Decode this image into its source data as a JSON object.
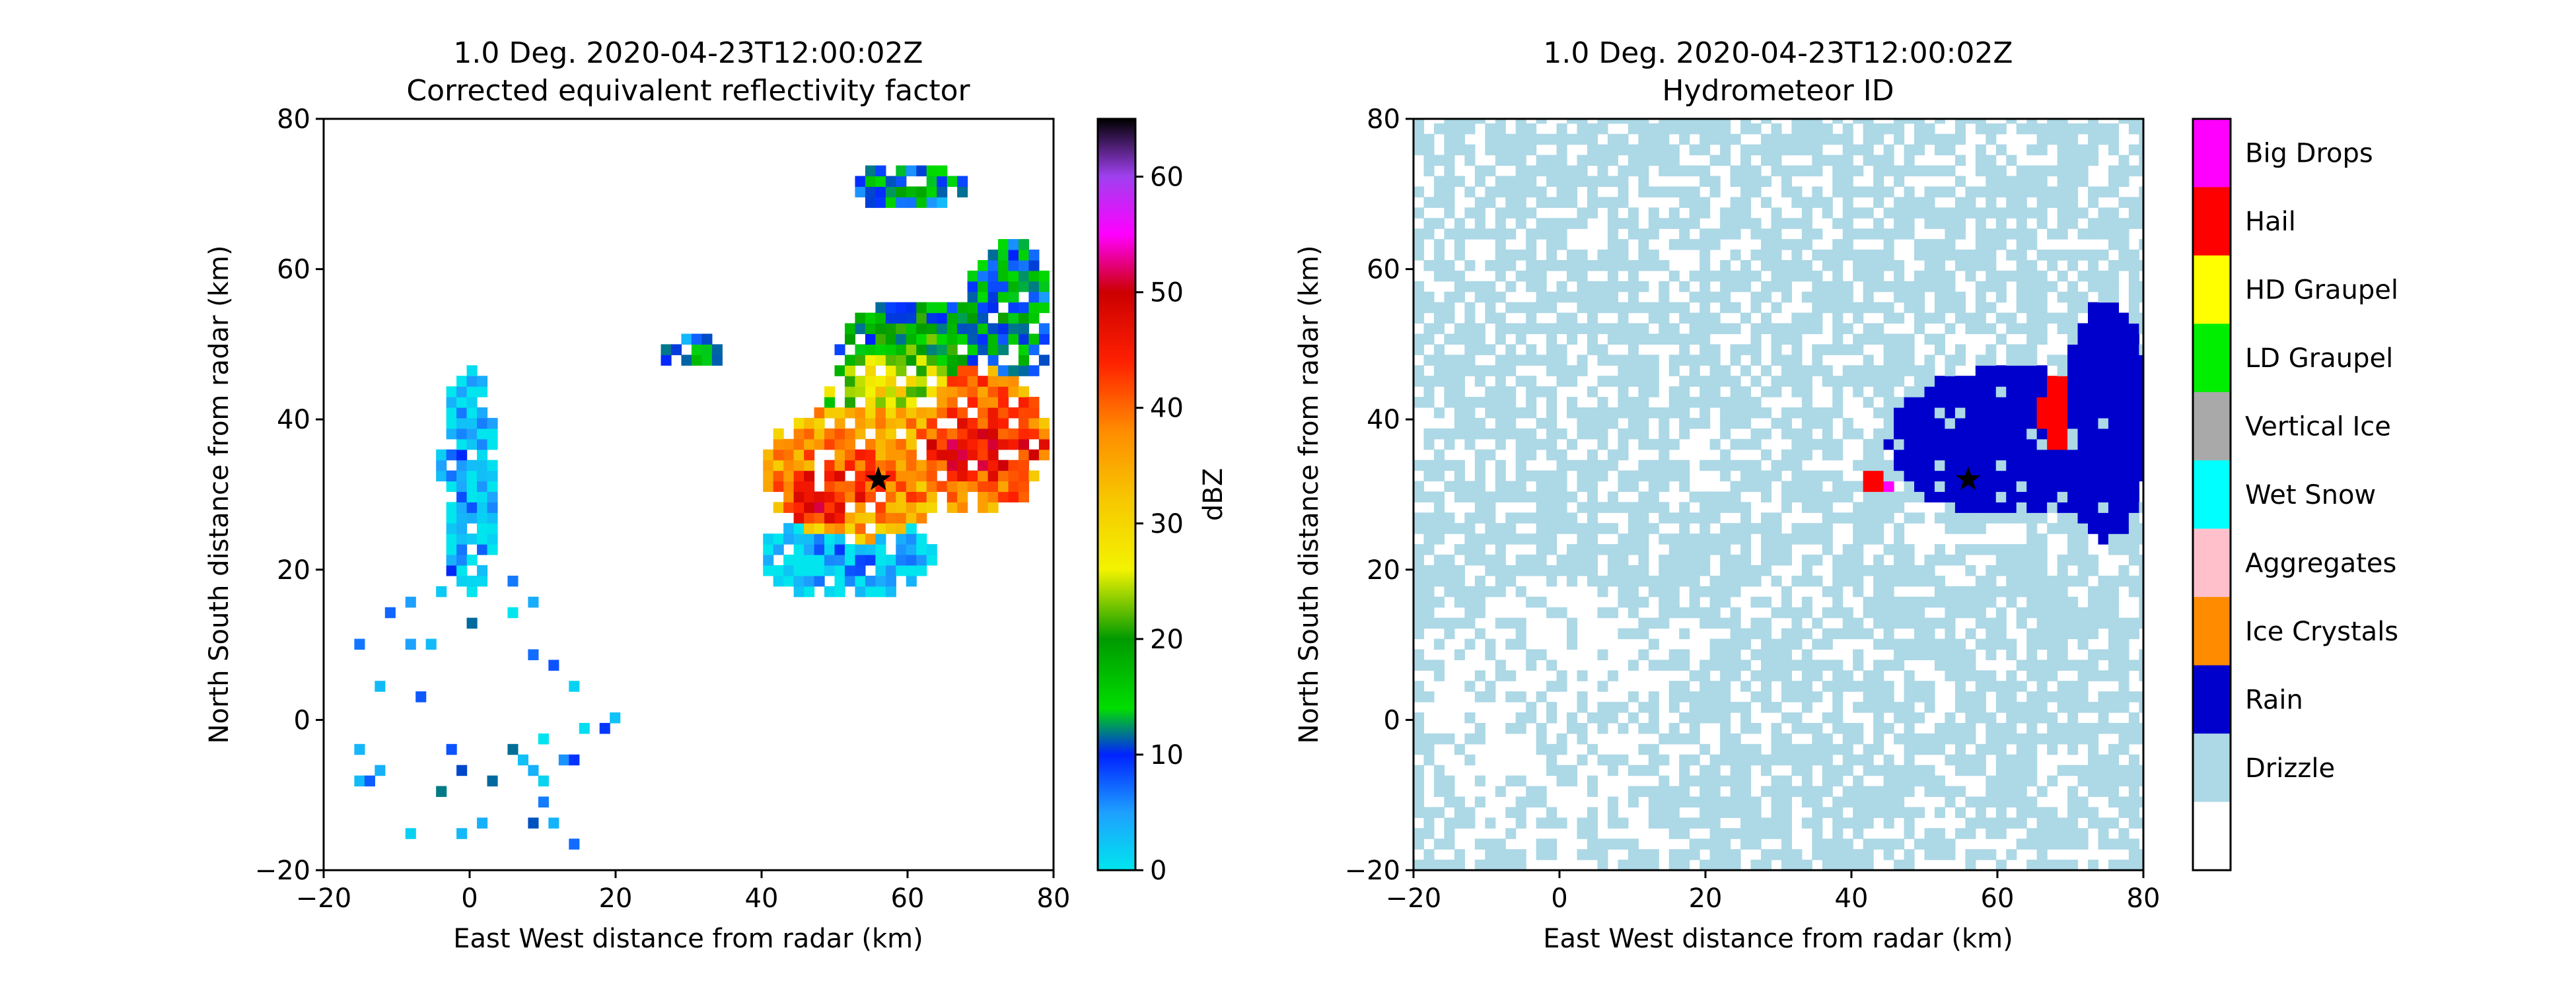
{
  "figure": {
    "left": {
      "title_line1": "1.0 Deg. 2020-04-23T12:00:02Z",
      "title_line2": "Corrected equivalent reflectivity factor",
      "xlabel": "East West distance from radar (km)",
      "ylabel": "North South distance from radar (km)",
      "colorbar_label": "dBZ"
    },
    "right": {
      "title_line1": "1.0 Deg. 2020-04-23T12:00:02Z",
      "title_line2": "Hydrometeor ID",
      "xlabel": "East West distance from radar (km)",
      "ylabel": "North South distance from radar (km)"
    }
  },
  "chart_data": [
    {
      "type": "heatmap",
      "title": "1.0 Deg. 2020-04-23T12:00:02Z Corrected equivalent reflectivity factor",
      "xlabel": "East West distance from radar (km)",
      "ylabel": "North South distance from radar (km)",
      "xlim": [
        -20,
        80
      ],
      "ylim": [
        -20,
        80
      ],
      "xticks": [
        -20,
        0,
        20,
        40,
        60,
        80
      ],
      "yticks": [
        -20,
        0,
        20,
        40,
        60,
        80
      ],
      "marker": {
        "shape": "star",
        "x": 56,
        "y": 32,
        "color": "#000000"
      },
      "colorbar": {
        "label": "dBZ",
        "range": [
          0,
          65
        ],
        "ticks": [
          0,
          10,
          20,
          30,
          40,
          50,
          60
        ],
        "stops": [
          {
            "v": 0,
            "color": "#00e5ee"
          },
          {
            "v": 5,
            "color": "#1ea0ff"
          },
          {
            "v": 10,
            "color": "#0022ff"
          },
          {
            "v": 14,
            "color": "#00dd00"
          },
          {
            "v": 20,
            "color": "#009a00"
          },
          {
            "v": 26,
            "color": "#f3f300"
          },
          {
            "v": 32,
            "color": "#f6c800"
          },
          {
            "v": 38,
            "color": "#ff8c00"
          },
          {
            "v": 44,
            "color": "#ff2000"
          },
          {
            "v": 50,
            "color": "#cc0000"
          },
          {
            "v": 55,
            "color": "#ff00ff"
          },
          {
            "v": 60,
            "color": "#a040f0"
          },
          {
            "v": 65,
            "color": "#000000"
          }
        ]
      },
      "echo_regions": [
        {
          "cx": 53,
          "cy": 33,
          "rx": 13,
          "ry": 9,
          "dbz": 40
        },
        {
          "cx": 70,
          "cy": 37,
          "rx": 9,
          "ry": 10,
          "dbz": 43
        },
        {
          "cx": 48,
          "cy": 30,
          "rx": 6,
          "ry": 4,
          "dbz": 47
        },
        {
          "cx": 70,
          "cy": 36,
          "rx": 9,
          "ry": 4,
          "dbz": 48
        },
        {
          "cx": 58,
          "cy": 43,
          "rx": 9,
          "ry": 6,
          "dbz": 28
        },
        {
          "cx": 62,
          "cy": 50,
          "rx": 12,
          "ry": 6,
          "dbz": 18
        },
        {
          "cx": 74,
          "cy": 54,
          "rx": 6,
          "ry": 10,
          "dbz": 15
        },
        {
          "cx": 52,
          "cy": 22,
          "rx": 12,
          "ry": 6,
          "dbz": 4
        },
        {
          "cx": 0,
          "cy": 32,
          "rx": 4,
          "ry": 15,
          "dbz": 5
        },
        {
          "cx": 60,
          "cy": 71,
          "rx": 8,
          "ry": 3,
          "dbz": 14
        },
        {
          "cx": 31,
          "cy": 49,
          "rx": 5,
          "ry": 2,
          "dbz": 14
        }
      ]
    },
    {
      "type": "heatmap",
      "title": "1.0 Deg. 2020-04-23T12:00:02Z Hydrometeor ID",
      "xlabel": "East West distance from radar (km)",
      "ylabel": "North South distance from radar (km)",
      "xlim": [
        -20,
        80
      ],
      "ylim": [
        -20,
        80
      ],
      "xticks": [
        -20,
        0,
        20,
        40,
        60,
        80
      ],
      "yticks": [
        -20,
        0,
        20,
        40,
        60,
        80
      ],
      "marker": {
        "shape": "star",
        "x": 56,
        "y": 32,
        "color": "#000000"
      },
      "categories": [
        {
          "label": "Big Drops",
          "color": "#ff00ff"
        },
        {
          "label": "Hail",
          "color": "#ff0000"
        },
        {
          "label": "HD Graupel",
          "color": "#ffff00"
        },
        {
          "label": "LD Graupel",
          "color": "#00ee00"
        },
        {
          "label": "Vertical Ice",
          "color": "#a9a9a9"
        },
        {
          "label": "Wet Snow",
          "color": "#00ffff"
        },
        {
          "label": "Aggregates",
          "color": "#ffc0cb"
        },
        {
          "label": "Ice Crystals",
          "color": "#ff8c00"
        },
        {
          "label": "Rain",
          "color": "#0000cd"
        },
        {
          "label": "Drizzle",
          "color": "#add8e6"
        },
        {
          "label": "",
          "color": "#ffffff"
        }
      ],
      "class_regions": [
        {
          "class": "Rain",
          "cx": 62,
          "cy": 37,
          "rx": 17,
          "ry": 10
        },
        {
          "class": "Rain",
          "cx": 75,
          "cy": 40,
          "rx": 6,
          "ry": 16
        },
        {
          "class": "Hail",
          "cx": 68,
          "cy": 41,
          "rx": 2,
          "ry": 5
        },
        {
          "class": "Big Drops",
          "cx": 44,
          "cy": 31,
          "rx": 2,
          "ry": 1
        },
        {
          "class": "Hail",
          "cx": 43,
          "cy": 32,
          "rx": 2,
          "ry": 1
        }
      ]
    }
  ]
}
